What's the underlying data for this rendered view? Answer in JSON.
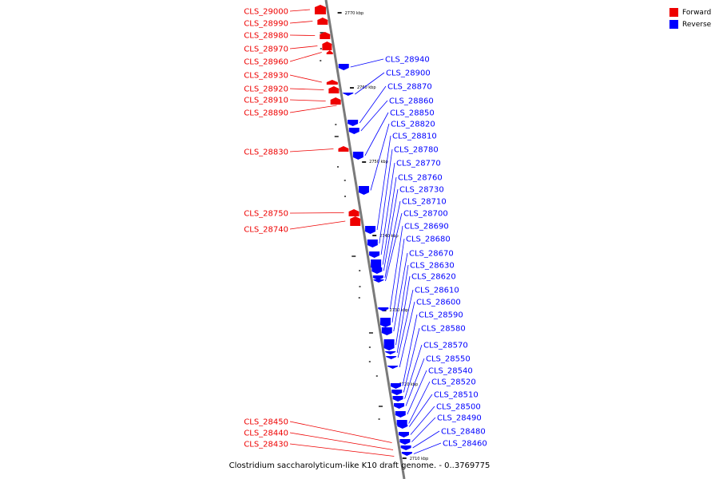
{
  "caption": "Clostridium saccharolyticum-like K10 draft genome. - 0..3769775",
  "colors": {
    "forward": "#ee0000",
    "reverse": "#0000ff",
    "backbone": "#7a7a7a"
  },
  "legend": [
    {
      "label": "Forward",
      "color": "#ee0000"
    },
    {
      "label": "Reverse",
      "color": "#0000ff"
    }
  ],
  "tick_labels": [
    "2770 kbp",
    "2760 kbp",
    "2750 kbp",
    "2740 kbp",
    "2730 kbp",
    "2720 kbp",
    "2710 kbp"
  ],
  "forward_genes": [
    "CLS_29000",
    "CLS_28990",
    "CLS_28980",
    "CLS_28970",
    "CLS_28960",
    "CLS_28930",
    "CLS_28920",
    "CLS_28910",
    "CLS_28890",
    "CLS_28830",
    "CLS_28750",
    "CLS_28740",
    "CLS_28450",
    "CLS_28440",
    "CLS_28430"
  ],
  "reverse_genes": [
    "CLS_28940",
    "CLS_28900",
    "CLS_28870",
    "CLS_28860",
    "CLS_28850",
    "CLS_28820",
    "CLS_28810",
    "CLS_28780",
    "CLS_28770",
    "CLS_28760",
    "CLS_28730",
    "CLS_28710",
    "CLS_28700",
    "CLS_28690",
    "CLS_28680",
    "CLS_28670",
    "CLS_28630",
    "CLS_28620",
    "CLS_28610",
    "CLS_28600",
    "CLS_28590",
    "CLS_28580",
    "CLS_28570",
    "CLS_28550",
    "CLS_28540",
    "CLS_28520",
    "CLS_28510",
    "CLS_28500",
    "CLS_28490",
    "CLS_28480",
    "CLS_28460"
  ]
}
